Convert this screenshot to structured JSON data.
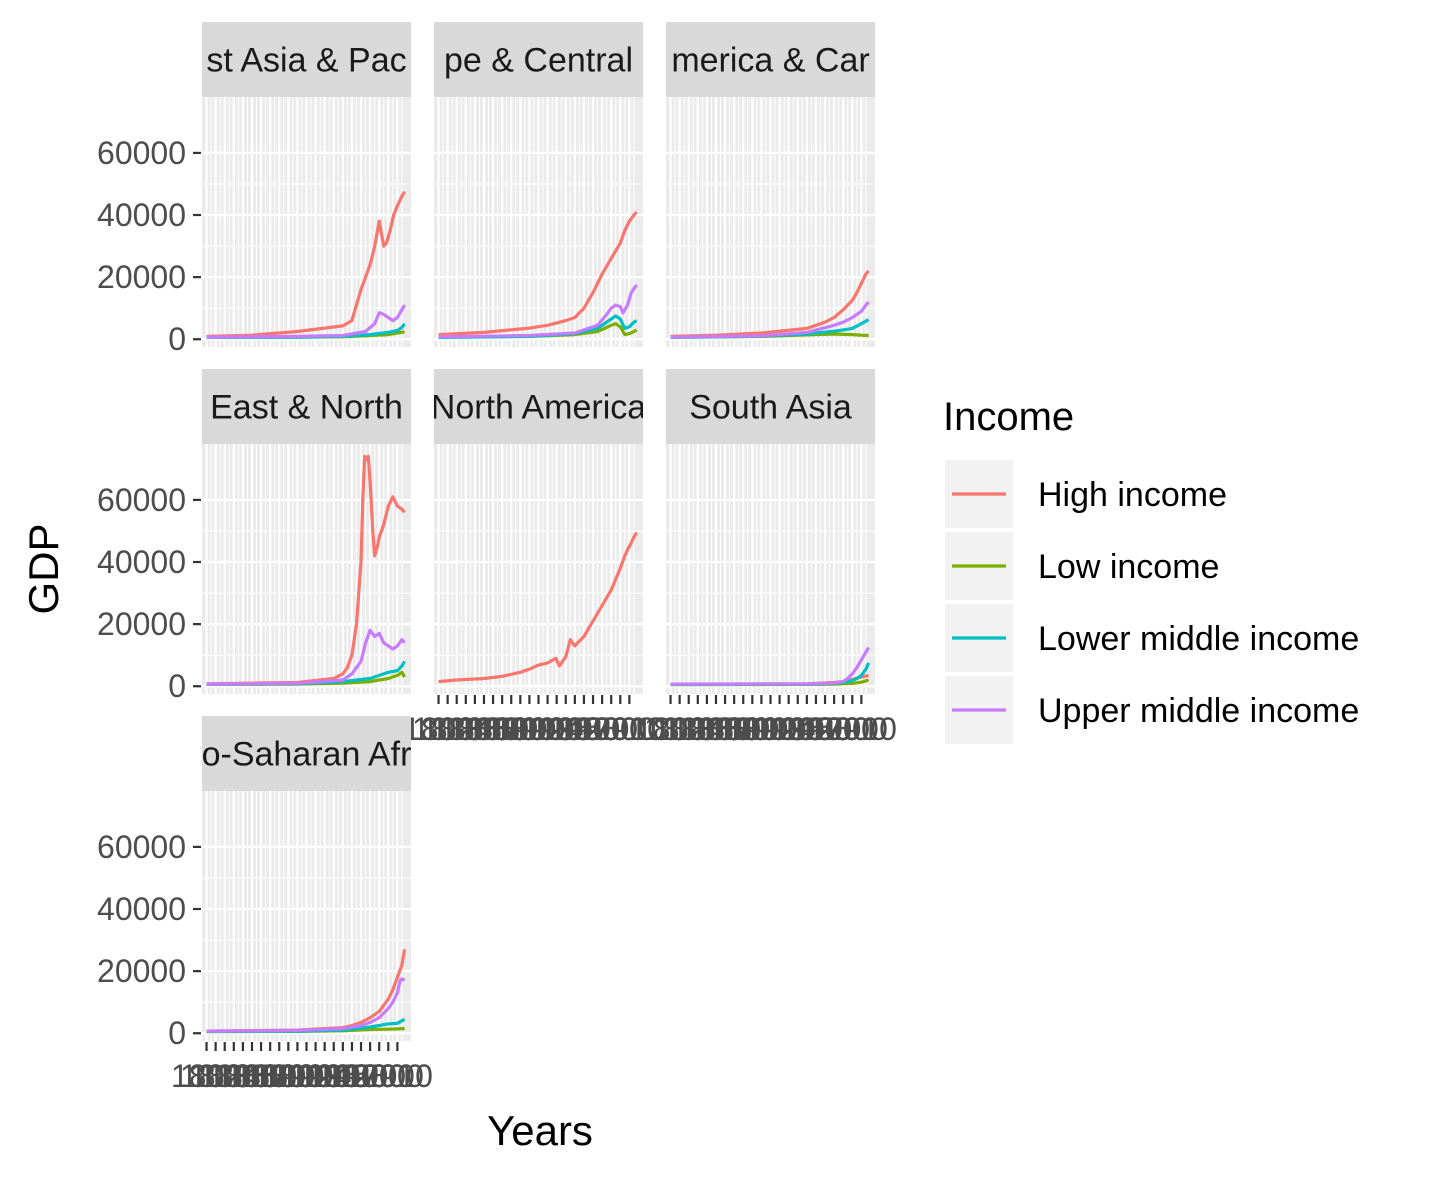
{
  "chart_data": {
    "type": "line",
    "subtype": "faceted",
    "xlabel": "Years",
    "ylabel": "GDP",
    "ylim": [
      -2500,
      78000
    ],
    "xlim": [
      1795,
      2025
    ],
    "y_ticks": [
      0,
      20000,
      40000,
      60000
    ],
    "y_tick_labels": [
      "0",
      "20000",
      "40000",
      "60000"
    ],
    "x_tick_labels": [
      "1800",
      "1810",
      "1820",
      "1830",
      "1840",
      "1850",
      "1860",
      "1870",
      "1880",
      "1890",
      "1900",
      "1910",
      "1920",
      "1930",
      "1940",
      "1950",
      "1960",
      "1970",
      "1980",
      "1990",
      "2000",
      "2010"
    ],
    "legend": {
      "title": "Income",
      "position": "right",
      "entries": [
        "High income",
        "Low income",
        "Lower middle income",
        "Upper middle income"
      ]
    },
    "colors": {
      "High income": "#F8766D",
      "Low income": "#7CAE00",
      "Lower middle income": "#00BFC4",
      "Upper middle income": "#C77CFF"
    },
    "panels": [
      {
        "title_display": "st Asia & Pac",
        "series": [
          {
            "name": "High income",
            "x": [
              1800,
              1850,
              1900,
              1930,
              1950,
              1960,
              1970,
              1980,
              1985,
              1990,
              1995,
              1998,
              2002,
              2006,
              2010,
              2015,
              2018
            ],
            "y": [
              900,
              1300,
              2500,
              3600,
              4300,
              6000,
              16000,
              24000,
              30000,
              38000,
              30000,
              31000,
              35000,
              40000,
              43000,
              46000,
              47500
            ]
          },
          {
            "name": "Low income",
            "x": [
              1800,
              1900,
              1950,
              1980,
              2000,
              2010,
              2018
            ],
            "y": [
              600,
              700,
              800,
              1200,
              1500,
              2000,
              2400
            ]
          },
          {
            "name": "Lower middle income",
            "x": [
              1800,
              1900,
              1950,
              1980,
              2000,
              2010,
              2015,
              2018
            ],
            "y": [
              600,
              700,
              900,
              1500,
              2200,
              2800,
              3800,
              5000
            ]
          },
          {
            "name": "Upper middle income",
            "x": [
              1800,
              1900,
              1950,
              1975,
              1985,
              1990,
              1995,
              2000,
              2005,
              2010,
              2015,
              2018
            ],
            "y": [
              700,
              900,
              1200,
              2500,
              5000,
              8500,
              8000,
              7000,
              6000,
              7000,
              9500,
              11000
            ]
          }
        ]
      },
      {
        "title_display": "pe & Central",
        "series": [
          {
            "name": "High income",
            "x": [
              1800,
              1850,
              1900,
              1920,
              1940,
              1950,
              1960,
              1970,
              1980,
              1990,
              2000,
              2005,
              2010,
              2015,
              2018
            ],
            "y": [
              1500,
              2200,
              3600,
              4500,
              6000,
              7000,
              10000,
              15000,
              21000,
              26000,
              31000,
              35000,
              38000,
              40000,
              41000
            ]
          },
          {
            "name": "Low income",
            "x": [
              1800,
              1900,
              1950,
              1975,
              1990,
              1995,
              2000,
              2005,
              2010,
              2015,
              2018
            ],
            "y": [
              700,
              900,
              1500,
              2500,
              4500,
              5000,
              4000,
              1500,
              1800,
              2500,
              3000
            ]
          },
          {
            "name": "Lower middle income",
            "x": [
              1800,
              1900,
              1950,
              1975,
              1990,
              1995,
              2000,
              2005,
              2010,
              2015,
              2018
            ],
            "y": [
              600,
              900,
              1800,
              3500,
              6500,
              7500,
              6500,
              3500,
              4000,
              5500,
              6000
            ]
          },
          {
            "name": "Upper middle income",
            "x": [
              1800,
              1900,
              1950,
              1975,
              1985,
              1990,
              1995,
              2000,
              2003,
              2008,
              2012,
              2018
            ],
            "y": [
              800,
              1200,
              2000,
              4500,
              8000,
              10000,
              11000,
              10500,
              8500,
              11000,
              15000,
              17500
            ]
          }
        ]
      },
      {
        "title_display": "merica & Car",
        "series": [
          {
            "name": "High income",
            "x": [
              1800,
              1850,
              1900,
              1950,
              1970,
              1980,
              1990,
              2000,
              2005,
              2010,
              2015,
              2018
            ],
            "y": [
              900,
              1300,
              2000,
              3500,
              5500,
              7000,
              9500,
              12500,
              15000,
              18000,
              21000,
              22000
            ]
          },
          {
            "name": "Low income",
            "x": [
              1800,
              1900,
              1950,
              1980,
              2000,
              2010,
              2018
            ],
            "y": [
              600,
              900,
              1400,
              1700,
              1500,
              1300,
              1200
            ]
          },
          {
            "name": "Lower middle income",
            "x": [
              1800,
              1900,
              1950,
              1980,
              1990,
              2000,
              2010,
              2018
            ],
            "y": [
              600,
              1000,
              1700,
              2600,
              3000,
              3500,
              5000,
              6300
            ]
          },
          {
            "name": "Upper middle income",
            "x": [
              1800,
              1900,
              1950,
              1980,
              1990,
              2000,
              2005,
              2010,
              2015,
              2018
            ],
            "y": [
              700,
              1100,
              2200,
              4500,
              5500,
              7000,
              8000,
              9000,
              11000,
              12000
            ]
          }
        ]
      },
      {
        "title_display": " East & North",
        "series": [
          {
            "name": "High income",
            "x": [
              1800,
              1900,
              1940,
              1950,
              1955,
              1960,
              1965,
              1970,
              1972,
              1974,
              1976,
              1978,
              1980,
              1983,
              1985,
              1988,
              1990,
              1995,
              2000,
              2005,
              2010,
              2015,
              2018
            ],
            "y": [
              800,
              1200,
              2500,
              4000,
              6000,
              10000,
              20000,
              40000,
              60000,
              74000,
              73000,
              74000,
              66000,
              50000,
              42000,
              45000,
              48000,
              52000,
              58000,
              61000,
              58000,
              57000,
              56000
            ]
          },
          {
            "name": "Low income",
            "x": [
              1800,
              1900,
              1950,
              1980,
              1990,
              2000,
              2005,
              2010,
              2015,
              2018
            ],
            "y": [
              600,
              700,
              1000,
              1500,
              2000,
              2500,
              3000,
              3500,
              4500,
              3000
            ]
          },
          {
            "name": "Lower middle income",
            "x": [
              1800,
              1900,
              1950,
              1980,
              1990,
              2000,
              2010,
              2015,
              2018
            ],
            "y": [
              600,
              800,
              1500,
              2500,
              3500,
              4500,
              5000,
              6500,
              8000
            ]
          },
          {
            "name": "Upper middle income",
            "x": [
              1800,
              1900,
              1950,
              1960,
              1970,
              1975,
              1980,
              1985,
              1990,
              1995,
              2000,
              2005,
              2010,
              2015,
              2018
            ],
            "y": [
              700,
              900,
              2000,
              4000,
              8000,
              14000,
              18000,
              16000,
              17000,
              14000,
              13000,
              12000,
              13000,
              15000,
              14000
            ]
          }
        ]
      },
      {
        "title_display": "North America",
        "series": [
          {
            "name": "High income",
            "x": [
              1800,
              1820,
              1850,
              1870,
              1890,
              1900,
              1910,
              1920,
              1929,
              1933,
              1940,
              1945,
              1950,
              1960,
              1970,
              1980,
              1990,
              2000,
              2005,
              2008,
              2010,
              2015,
              2018
            ],
            "y": [
              1500,
              2000,
              2500,
              3200,
              4500,
              5500,
              6800,
              7500,
              9000,
              6500,
              9500,
              15000,
              13000,
              16000,
              21000,
              26000,
              31000,
              38000,
              42000,
              44000,
              45000,
              48000,
              49500
            ]
          }
        ]
      },
      {
        "title_display": "South Asia",
        "series": [
          {
            "name": "High income",
            "x": [
              1800,
              1900,
              1950,
              1980,
              1990,
              2000,
              2010,
              2018
            ],
            "y": [
              600,
              700,
              800,
              1200,
              1500,
              2200,
              3000,
              3500
            ]
          },
          {
            "name": "Low income",
            "x": [
              1800,
              1900,
              1950,
              1980,
              2000,
              2010,
              2018
            ],
            "y": [
              500,
              550,
              600,
              700,
              900,
              1300,
              2000
            ]
          },
          {
            "name": "Lower middle income",
            "x": [
              1800,
              1900,
              1950,
              1980,
              1990,
              2000,
              2005,
              2010,
              2015,
              2018
            ],
            "y": [
              600,
              650,
              700,
              900,
              1200,
              1800,
              2500,
              3500,
              5500,
              7500
            ]
          },
          {
            "name": "Upper middle income",
            "x": [
              1800,
              1900,
              1950,
              1980,
              1990,
              1995,
              2000,
              2005,
              2010,
              2015,
              2018
            ],
            "y": [
              700,
              750,
              800,
              1000,
              1500,
              2500,
              4000,
              6000,
              8500,
              11000,
              12500
            ]
          }
        ]
      },
      {
        "title_display": "o-Saharan Afr",
        "series": [
          {
            "name": "High income",
            "x": [
              1800,
              1900,
              1950,
              1960,
              1970,
              1980,
              1990,
              1995,
              2000,
              2005,
              2010,
              2015,
              2018
            ],
            "y": [
              700,
              1000,
              1800,
              2500,
              3500,
              5000,
              7000,
              9000,
              11000,
              14000,
              18000,
              22000,
              27000
            ]
          },
          {
            "name": "Low income",
            "x": [
              1800,
              1900,
              1950,
              1980,
              2000,
              2010,
              2018
            ],
            "y": [
              500,
              600,
              800,
              1200,
              1300,
              1400,
              1500
            ]
          },
          {
            "name": "Lower middle income",
            "x": [
              1800,
              1900,
              1950,
              1980,
              1990,
              2000,
              2010,
              2015,
              2018
            ],
            "y": [
              600,
              700,
              1000,
              2000,
              2500,
              3000,
              3200,
              4000,
              4500
            ]
          },
          {
            "name": "Upper middle income",
            "x": [
              1800,
              1900,
              1950,
              1970,
              1980,
              1990,
              2000,
              2005,
              2010,
              2013,
              2015,
              2018
            ],
            "y": [
              700,
              900,
              1500,
              2500,
              3500,
              5000,
              8000,
              10000,
              13000,
              17000,
              17500,
              17000
            ]
          }
        ]
      }
    ]
  }
}
